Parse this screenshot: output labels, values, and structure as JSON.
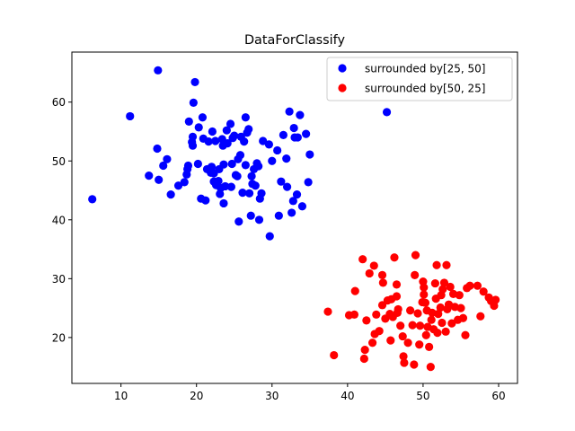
{
  "chart_data": {
    "type": "scatter",
    "title": "DataForClassify",
    "xlabel": "",
    "ylabel": "",
    "xlim": [
      3.5,
      62.5
    ],
    "ylim": [
      12.2,
      68.5
    ],
    "xticks": [
      10,
      20,
      30,
      40,
      50,
      60
    ],
    "yticks": [
      20,
      30,
      40,
      50,
      60
    ],
    "grid": false,
    "legend_position": "top-right",
    "series": [
      {
        "name": "surrounded by[25, 50]",
        "color": "#0000ff",
        "points": [
          [
            6.2,
            43.5
          ],
          [
            11.2,
            57.6
          ],
          [
            13.7,
            47.5
          ],
          [
            14.9,
            65.4
          ],
          [
            14.8,
            52.1
          ],
          [
            15.0,
            46.8
          ],
          [
            15.6,
            49.2
          ],
          [
            16.1,
            50.3
          ],
          [
            16.6,
            44.3
          ],
          [
            17.6,
            45.8
          ],
          [
            18.4,
            46.4
          ],
          [
            18.7,
            47.7
          ],
          [
            18.8,
            48.6
          ],
          [
            18.9,
            49.2
          ],
          [
            19.0,
            56.7
          ],
          [
            19.4,
            53.2
          ],
          [
            19.5,
            52.6
          ],
          [
            19.5,
            54.1
          ],
          [
            19.6,
            59.9
          ],
          [
            19.8,
            63.4
          ],
          [
            20.2,
            49.5
          ],
          [
            20.3,
            55.7
          ],
          [
            20.6,
            43.6
          ],
          [
            20.8,
            57.4
          ],
          [
            20.9,
            53.8
          ],
          [
            21.2,
            43.3
          ],
          [
            21.4,
            48.6
          ],
          [
            21.6,
            53.3
          ],
          [
            21.9,
            48.0
          ],
          [
            22.0,
            49.0
          ],
          [
            22.1,
            55.0
          ],
          [
            22.3,
            46.5
          ],
          [
            22.3,
            47.9
          ],
          [
            22.5,
            53.4
          ],
          [
            22.6,
            45.9
          ],
          [
            22.9,
            46.6
          ],
          [
            23.0,
            48.6
          ],
          [
            23.1,
            44.4
          ],
          [
            23.2,
            45.4
          ],
          [
            23.4,
            53.7
          ],
          [
            23.5,
            52.6
          ],
          [
            23.6,
            49.4
          ],
          [
            23.6,
            42.8
          ],
          [
            23.8,
            45.7
          ],
          [
            24.0,
            55.2
          ],
          [
            24.1,
            53.0
          ],
          [
            24.5,
            56.3
          ],
          [
            24.6,
            45.6
          ],
          [
            24.7,
            49.5
          ],
          [
            24.8,
            53.9
          ],
          [
            25.0,
            54.3
          ],
          [
            25.2,
            47.6
          ],
          [
            25.4,
            47.4
          ],
          [
            25.5,
            50.3
          ],
          [
            25.6,
            39.7
          ],
          [
            25.8,
            51.0
          ],
          [
            25.9,
            54.1
          ],
          [
            26.1,
            44.6
          ],
          [
            26.3,
            53.3
          ],
          [
            26.5,
            57.4
          ],
          [
            26.5,
            49.3
          ],
          [
            26.7,
            54.8
          ],
          [
            26.9,
            55.4
          ],
          [
            27.0,
            44.5
          ],
          [
            27.2,
            40.7
          ],
          [
            27.3,
            47.4
          ],
          [
            27.4,
            46.1
          ],
          [
            27.6,
            48.6
          ],
          [
            27.8,
            45.8
          ],
          [
            28.0,
            49.6
          ],
          [
            28.2,
            49.1
          ],
          [
            28.3,
            40.0
          ],
          [
            28.4,
            43.6
          ],
          [
            28.6,
            44.5
          ],
          [
            28.8,
            53.4
          ],
          [
            29.6,
            52.8
          ],
          [
            29.7,
            37.2
          ],
          [
            30.0,
            50.0
          ],
          [
            30.7,
            51.8
          ],
          [
            30.9,
            40.7
          ],
          [
            31.2,
            46.5
          ],
          [
            31.5,
            54.4
          ],
          [
            31.9,
            50.4
          ],
          [
            32.0,
            45.6
          ],
          [
            32.3,
            58.4
          ],
          [
            32.6,
            41.2
          ],
          [
            32.8,
            43.2
          ],
          [
            32.9,
            55.6
          ],
          [
            33.0,
            54.0
          ],
          [
            33.4,
            54.0
          ],
          [
            33.3,
            44.3
          ],
          [
            33.7,
            57.8
          ],
          [
            34.0,
            42.3
          ],
          [
            34.5,
            54.6
          ],
          [
            34.8,
            46.4
          ],
          [
            35.0,
            51.1
          ],
          [
            45.2,
            58.3
          ]
        ]
      },
      {
        "name": "surrounded by[50, 25]",
        "color": "#ff0000",
        "points": [
          [
            37.4,
            24.4
          ],
          [
            38.2,
            17.0
          ],
          [
            40.2,
            23.8
          ],
          [
            40.9,
            23.9
          ],
          [
            41.0,
            27.9
          ],
          [
            42.0,
            33.3
          ],
          [
            42.2,
            16.4
          ],
          [
            42.3,
            17.9
          ],
          [
            42.5,
            22.9
          ],
          [
            42.9,
            30.9
          ],
          [
            43.3,
            19.1
          ],
          [
            43.5,
            32.2
          ],
          [
            43.6,
            20.6
          ],
          [
            43.8,
            23.9
          ],
          [
            44.2,
            21.1
          ],
          [
            44.6,
            25.5
          ],
          [
            44.6,
            30.6
          ],
          [
            44.7,
            29.3
          ],
          [
            45.0,
            23.2
          ],
          [
            45.3,
            26.3
          ],
          [
            45.6,
            24.0
          ],
          [
            45.7,
            19.5
          ],
          [
            45.8,
            26.5
          ],
          [
            46.0,
            23.5
          ],
          [
            46.2,
            33.6
          ],
          [
            46.5,
            27.0
          ],
          [
            46.5,
            29.0
          ],
          [
            46.6,
            24.2
          ],
          [
            46.7,
            24.8
          ],
          [
            47.0,
            22.0
          ],
          [
            47.3,
            20.2
          ],
          [
            47.4,
            16.8
          ],
          [
            47.5,
            15.7
          ],
          [
            48.0,
            19.1
          ],
          [
            48.3,
            24.6
          ],
          [
            48.6,
            22.1
          ],
          [
            48.8,
            15.4
          ],
          [
            48.9,
            30.6
          ],
          [
            49.0,
            34.0
          ],
          [
            49.3,
            24.1
          ],
          [
            49.5,
            18.8
          ],
          [
            49.6,
            22.0
          ],
          [
            49.9,
            26.0
          ],
          [
            50.0,
            29.5
          ],
          [
            50.1,
            28.5
          ],
          [
            50.1,
            27.3
          ],
          [
            50.3,
            25.9
          ],
          [
            50.4,
            20.4
          ],
          [
            50.5,
            24.6
          ],
          [
            50.6,
            21.8
          ],
          [
            50.8,
            18.4
          ],
          [
            51.0,
            15.0
          ],
          [
            51.1,
            23.0
          ],
          [
            51.2,
            24.2
          ],
          [
            51.4,
            21.4
          ],
          [
            51.6,
            29.2
          ],
          [
            51.7,
            26.6
          ],
          [
            51.8,
            32.3
          ],
          [
            51.9,
            20.8
          ],
          [
            52.0,
            24.0
          ],
          [
            52.3,
            25.1
          ],
          [
            52.4,
            27.2
          ],
          [
            52.5,
            22.5
          ],
          [
            52.6,
            28.2
          ],
          [
            52.8,
            29.3
          ],
          [
            53.0,
            21.0
          ],
          [
            53.1,
            32.3
          ],
          [
            53.2,
            24.8
          ],
          [
            53.4,
            25.6
          ],
          [
            53.6,
            28.6
          ],
          [
            53.8,
            22.4
          ],
          [
            54.0,
            27.4
          ],
          [
            54.2,
            25.2
          ],
          [
            54.6,
            23.0
          ],
          [
            54.8,
            27.2
          ],
          [
            55.0,
            25.0
          ],
          [
            55.3,
            23.3
          ],
          [
            55.6,
            20.4
          ],
          [
            55.8,
            28.4
          ],
          [
            56.2,
            28.8
          ],
          [
            57.2,
            28.8
          ],
          [
            57.6,
            23.6
          ],
          [
            58.0,
            27.8
          ],
          [
            58.7,
            26.8
          ],
          [
            59.0,
            26.2
          ],
          [
            59.4,
            25.4
          ],
          [
            59.6,
            26.4
          ]
        ]
      }
    ]
  }
}
